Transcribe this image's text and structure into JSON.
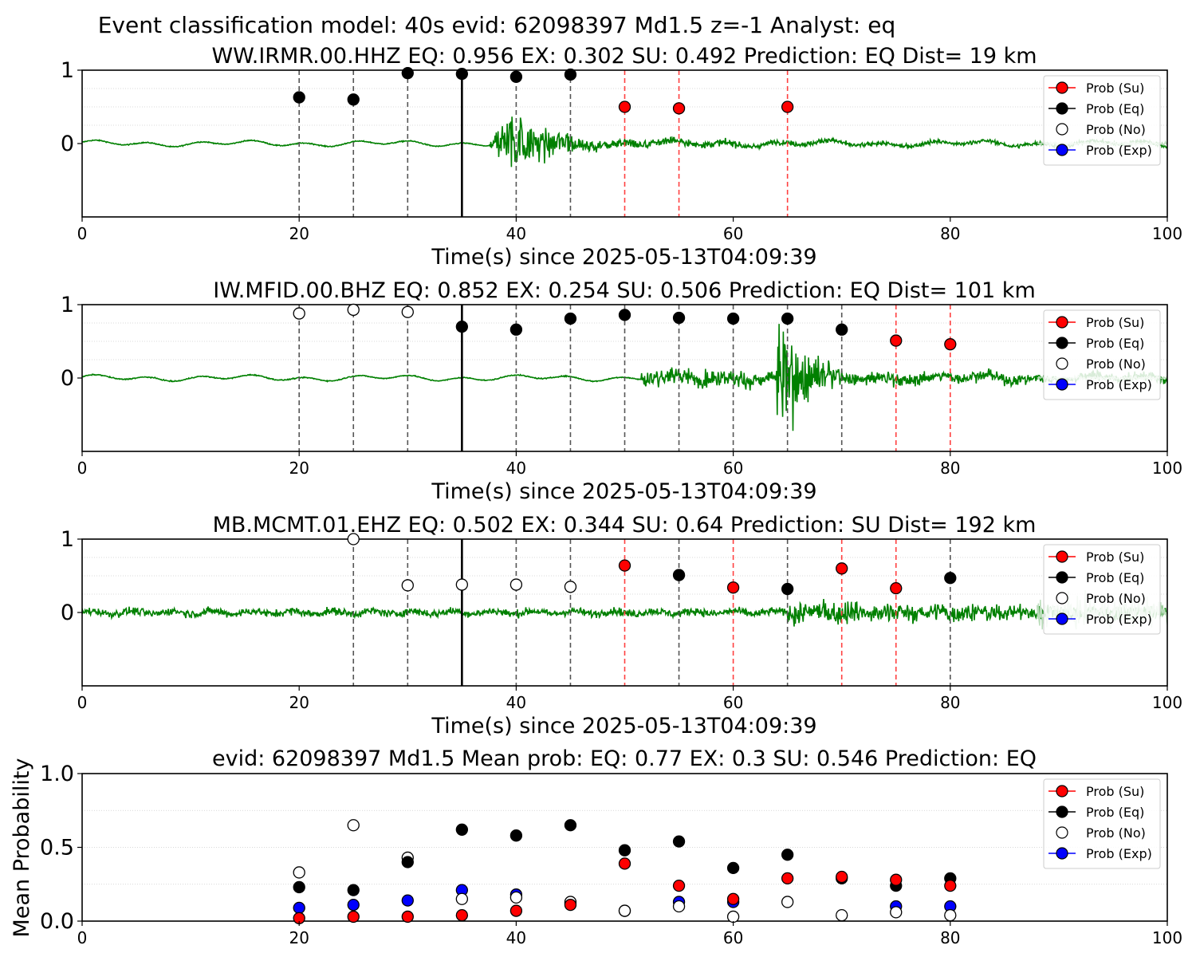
{
  "suptitle": "Event classification model: 40s evid: 62098397 Md1.5 z=-1 Analyst: eq",
  "colors": {
    "su": "#ff0000",
    "eq": "#000000",
    "no": "#ffffff",
    "exp": "#0000ff",
    "trace": "#008000",
    "trace_faded": "#b9dcb9",
    "red_line": "#ff4040",
    "gray_line": "#555555"
  },
  "chart_data": [
    {
      "type": "scatter",
      "title": "WW.IRMR.00.HHZ   EQ: 0.956  EX: 0.302  SU: 0.492   Prediction: EQ    Dist= 19 km",
      "xlabel": "Time(s) since 2025-05-13T04:09:39",
      "ylabel": "",
      "xlim": [
        0,
        100
      ],
      "ylim": [
        -1,
        1
      ],
      "xticks": [
        "0",
        "20",
        "40",
        "60",
        "80",
        "100"
      ],
      "yticks": [
        "0",
        "1"
      ],
      "legend_position": "top-right",
      "legend": [
        "Prob (Su)",
        "Prob (Eq)",
        "Prob (No)",
        "Prob (Exp)"
      ],
      "trace_onset": 37.5,
      "trace_amplitude": 0.9,
      "arrival": 35,
      "series": [
        {
          "name": "Prob (Eq)",
          "key": "eq",
          "x": [
            20,
            25,
            30,
            35,
            40,
            45
          ],
          "y": [
            0.63,
            0.6,
            0.96,
            0.95,
            0.91,
            0.94
          ]
        },
        {
          "name": "Prob (Su)",
          "key": "su",
          "x": [
            50,
            55,
            65
          ],
          "y": [
            0.5,
            0.48,
            0.5
          ]
        }
      ]
    },
    {
      "type": "scatter",
      "title": "IW.MFID.00.BHZ   EQ: 0.852  EX: 0.254  SU: 0.506   Prediction: EQ    Dist= 101 km",
      "xlabel": "Time(s) since 2025-05-13T04:09:39",
      "ylabel": "",
      "xlim": [
        0,
        100
      ],
      "ylim": [
        -1,
        1
      ],
      "xticks": [
        "0",
        "20",
        "40",
        "60",
        "80",
        "100"
      ],
      "yticks": [
        "0",
        "1"
      ],
      "legend_position": "top-right",
      "legend": [
        "Prob (Su)",
        "Prob (Eq)",
        "Prob (No)",
        "Prob (Exp)"
      ],
      "trace_onset": 51.5,
      "trace_amplitude": 0.95,
      "arrival": 35,
      "series": [
        {
          "name": "Prob (No)",
          "key": "no",
          "x": [
            20,
            25,
            30
          ],
          "y": [
            0.88,
            0.93,
            0.9
          ]
        },
        {
          "name": "Prob (Eq)",
          "key": "eq",
          "x": [
            35,
            40,
            45,
            50,
            55,
            60,
            65,
            70
          ],
          "y": [
            0.7,
            0.66,
            0.81,
            0.86,
            0.82,
            0.81,
            0.81,
            0.66
          ]
        },
        {
          "name": "Prob (Su)",
          "key": "su",
          "x": [
            75,
            80
          ],
          "y": [
            0.51,
            0.46
          ]
        }
      ]
    },
    {
      "type": "scatter",
      "title": "MB.MCMT.01.EHZ   EQ: 0.502  EX: 0.344  SU: 0.64   Prediction: SU    Dist= 192 km",
      "xlabel": "Time(s) since 2025-05-13T04:09:39",
      "ylabel": "",
      "xlim": [
        0,
        100
      ],
      "ylim": [
        -1,
        1
      ],
      "xticks": [
        "0",
        "20",
        "40",
        "60",
        "80",
        "100"
      ],
      "yticks": [
        "0",
        "1"
      ],
      "legend_position": "top-right",
      "legend": [
        "Prob (Su)",
        "Prob (Eq)",
        "Prob (No)",
        "Prob (Exp)"
      ],
      "trace_onset": 65,
      "trace_amplitude": 0.9,
      "arrival": 35,
      "series": [
        {
          "name": "Prob (No)",
          "key": "no",
          "x": [
            25,
            30,
            35,
            40,
            45
          ],
          "y": [
            1.0,
            0.37,
            0.38,
            0.38,
            0.35
          ]
        },
        {
          "name": "Prob (Su)",
          "key": "su",
          "x": [
            50,
            60,
            70,
            75
          ],
          "y": [
            0.64,
            0.34,
            0.6,
            0.33
          ]
        },
        {
          "name": "Prob (Eq)",
          "key": "eq",
          "x": [
            55,
            65,
            80
          ],
          "y": [
            0.51,
            0.32,
            0.47
          ]
        }
      ]
    },
    {
      "type": "scatter",
      "title": "evid: 62098397  Md1.5   Mean prob:   EQ: 0.77  EX: 0.3  SU: 0.546   Prediction: EQ",
      "xlabel": "",
      "ylabel": "Mean Probability",
      "xlim": [
        0,
        100
      ],
      "ylim": [
        0,
        1
      ],
      "xticks": [
        "0",
        "20",
        "40",
        "60",
        "80",
        "100"
      ],
      "yticks": [
        "0.0",
        "0.5",
        "1.0"
      ],
      "legend_position": "top-right",
      "legend": [
        "Prob (Su)",
        "Prob (Eq)",
        "Prob (No)",
        "Prob (Exp)"
      ],
      "x": [
        20,
        25,
        30,
        35,
        40,
        45,
        50,
        55,
        60,
        65,
        70,
        75,
        80
      ],
      "series": [
        {
          "name": "Prob (Exp)",
          "key": "exp",
          "y": [
            0.09,
            0.11,
            0.14,
            0.21,
            0.18,
            0.12,
            0.07,
            0.13,
            0.13,
            null,
            null,
            0.1,
            0.1
          ]
        },
        {
          "name": "Prob (No)",
          "key": "no",
          "y": [
            0.33,
            0.65,
            0.43,
            0.15,
            0.16,
            0.13,
            0.07,
            0.1,
            0.03,
            0.13,
            0.04,
            0.06,
            0.04
          ]
        },
        {
          "name": "Prob (Eq)",
          "key": "eq",
          "y": [
            0.23,
            0.21,
            0.4,
            0.62,
            0.58,
            0.65,
            0.48,
            0.54,
            0.36,
            0.45,
            0.29,
            0.24,
            0.29
          ]
        },
        {
          "name": "Prob (Su)",
          "key": "su",
          "y": [
            0.02,
            0.03,
            0.03,
            0.04,
            0.07,
            0.11,
            0.39,
            0.24,
            0.15,
            0.29,
            0.3,
            0.28,
            0.24
          ]
        }
      ]
    }
  ]
}
